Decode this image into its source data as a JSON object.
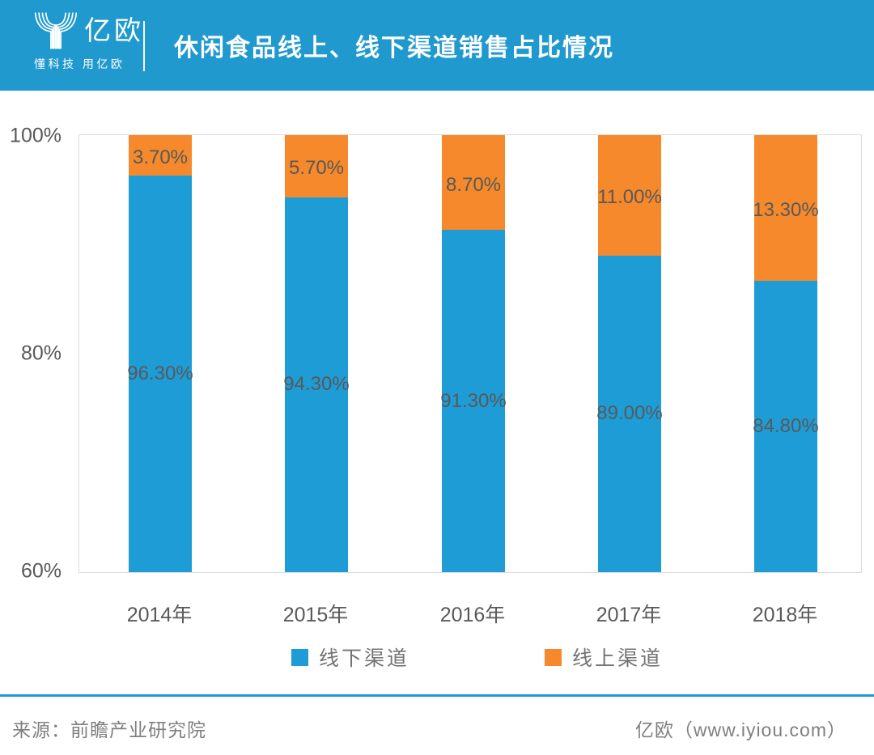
{
  "theme": {
    "brand_blue": "#2099CE",
    "label_gray": "#595959",
    "footer_gray": "#7F7F7F",
    "plot_border": "#DCDCDC"
  },
  "header": {
    "logo_text": "亿欧",
    "logo_tagline": "懂科技 用亿欧",
    "title": "休闲食品线上、线下渠道销售占比情况"
  },
  "chart_data": {
    "type": "bar",
    "stacked": true,
    "title": "休闲食品线上、线下渠道销售占比情况",
    "categories": [
      "2014年",
      "2015年",
      "2016年",
      "2017年",
      "2018年"
    ],
    "series": [
      {
        "name": "线下渠道",
        "color": "#1E9CD6",
        "values": [
          96.3,
          94.3,
          91.3,
          89.0,
          84.8
        ],
        "labels": [
          "96.30%",
          "94.30%",
          "91.30%",
          "89.00%",
          "84.80%"
        ]
      },
      {
        "name": "线上渠道",
        "color": "#F5892B",
        "values": [
          3.7,
          5.7,
          8.7,
          11.0,
          13.3
        ],
        "labels": [
          "3.70%",
          "5.70%",
          "8.70%",
          "11.00%",
          "13.30%"
        ]
      }
    ],
    "y_axis": {
      "min": 60,
      "max": 100,
      "ticks": [
        "100%",
        "80%",
        "60%"
      ]
    },
    "xlabel": "",
    "ylabel": "",
    "grid": false,
    "legend_position": "bottom"
  },
  "footer": {
    "source": "来源：前瞻产业研究院",
    "credit": "亿欧（www.iyiou.com）"
  }
}
